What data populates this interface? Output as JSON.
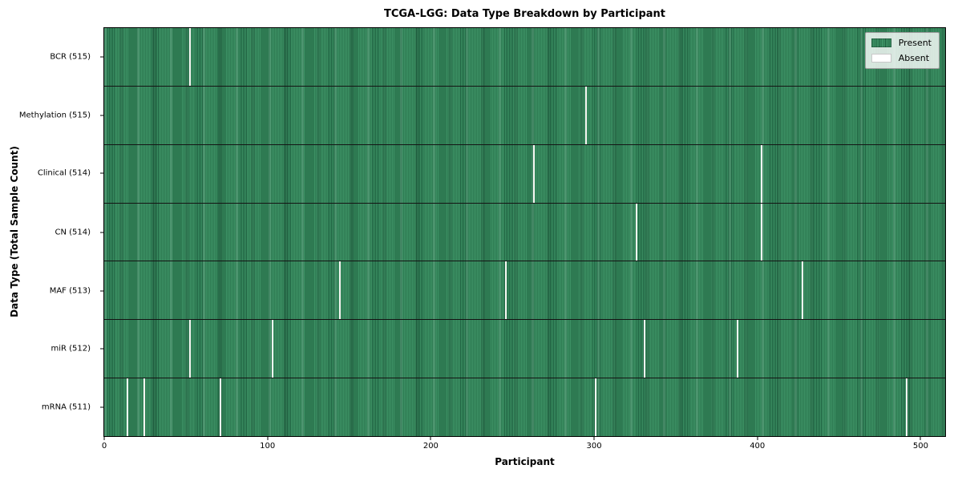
{
  "chart_data": {
    "type": "heatmap",
    "title": "TCGA-LGG: Data Type Breakdown by Participant",
    "xlabel": "Participant",
    "ylabel": "Data Type (Total Sample Count)",
    "n_participants": 516,
    "xlim": [
      -0.5,
      515.5
    ],
    "x_ticks": [
      0,
      100,
      200,
      300,
      400,
      500
    ],
    "grid": false,
    "legend_position": "upper right",
    "legend": [
      {
        "label": "Present",
        "color": "#2e8b57"
      },
      {
        "label": "Absent",
        "color": "#ffffff"
      }
    ],
    "colors": {
      "present_fill": "#2e8b57",
      "present_edge": "#1e6140",
      "absent_fill": "#ffffff",
      "row_divider": "#141414"
    },
    "rows": [
      {
        "label": "BCR (515)",
        "total_present": 515,
        "absent_participants": [
          52
        ]
      },
      {
        "label": "Methylation (515)",
        "total_present": 515,
        "absent_participants": [
          295
        ]
      },
      {
        "label": "Clinical (514)",
        "total_present": 514,
        "absent_participants": [
          263,
          403
        ]
      },
      {
        "label": "CN (514)",
        "total_present": 514,
        "absent_participants": [
          326,
          403
        ]
      },
      {
        "label": "MAF (513)",
        "total_present": 513,
        "absent_participants": [
          144,
          246,
          428
        ]
      },
      {
        "label": "miR (512)",
        "total_present": 512,
        "absent_participants": [
          52,
          103,
          331,
          388
        ]
      },
      {
        "label": "mRNA (511)",
        "total_present": 511,
        "absent_participants": [
          14,
          24,
          71,
          301,
          492
        ]
      }
    ]
  }
}
